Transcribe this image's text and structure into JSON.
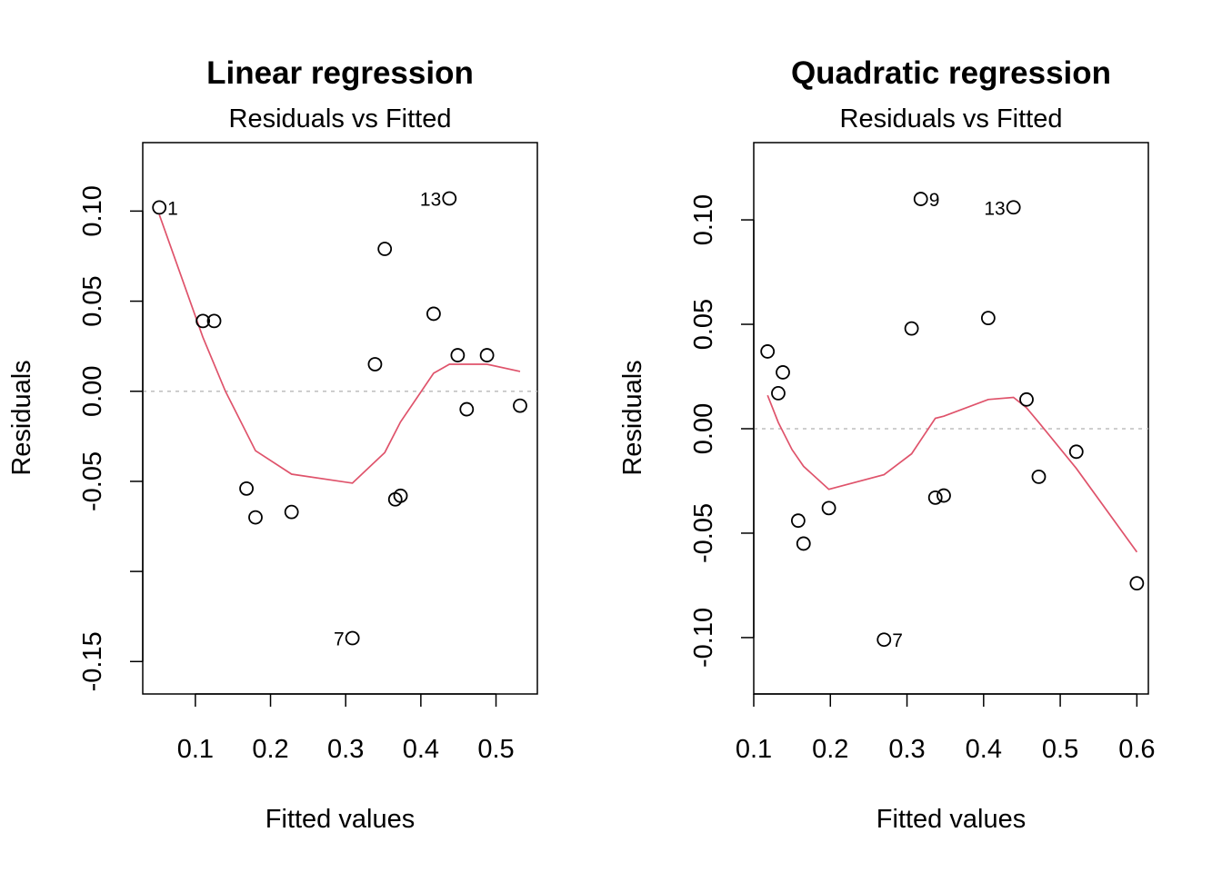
{
  "chart_data": [
    {
      "type": "scatter",
      "title": "Linear regression",
      "subtitle": "Residuals vs Fitted",
      "xlabel": "Fitted values",
      "ylabel": "Residuals",
      "xlim": [
        0.03,
        0.555
      ],
      "ylim": [
        -0.168,
        0.138
      ],
      "xticks": [
        0.1,
        0.2,
        0.3,
        0.4,
        0.5
      ],
      "xtick_labels": [
        "0.1",
        "0.2",
        "0.3",
        "0.4",
        "0.5"
      ],
      "yticks": [
        0.1,
        0.05,
        0.0,
        -0.05,
        -0.1,
        -0.15
      ],
      "ytick_labels": [
        "0.10",
        "0.05",
        "0.00",
        "-0.05",
        "",
        "-0.15"
      ],
      "reference_line_y": 0,
      "points": [
        {
          "x": 0.052,
          "y": 0.102,
          "label": "1"
        },
        {
          "x": 0.11,
          "y": 0.039
        },
        {
          "x": 0.125,
          "y": 0.039
        },
        {
          "x": 0.168,
          "y": -0.054
        },
        {
          "x": 0.18,
          "y": -0.07
        },
        {
          "x": 0.228,
          "y": -0.067
        },
        {
          "x": 0.309,
          "y": -0.137,
          "label": "7"
        },
        {
          "x": 0.339,
          "y": 0.015
        },
        {
          "x": 0.352,
          "y": 0.079
        },
        {
          "x": 0.366,
          "y": -0.06
        },
        {
          "x": 0.373,
          "y": -0.058
        },
        {
          "x": 0.417,
          "y": 0.043
        },
        {
          "x": 0.438,
          "y": 0.107,
          "label": "13"
        },
        {
          "x": 0.449,
          "y": 0.02
        },
        {
          "x": 0.461,
          "y": -0.01
        },
        {
          "x": 0.488,
          "y": 0.02
        },
        {
          "x": 0.532,
          "y": -0.008
        }
      ],
      "smooth_line": {
        "color": "#DF536B",
        "points": [
          [
            0.052,
            0.098
          ],
          [
            0.11,
            0.03
          ],
          [
            0.14,
            0.0
          ],
          [
            0.18,
            -0.033
          ],
          [
            0.228,
            -0.046
          ],
          [
            0.309,
            -0.051
          ],
          [
            0.352,
            -0.034
          ],
          [
            0.373,
            -0.017
          ],
          [
            0.417,
            0.01
          ],
          [
            0.438,
            0.015
          ],
          [
            0.461,
            0.015
          ],
          [
            0.488,
            0.015
          ],
          [
            0.532,
            0.011
          ]
        ]
      }
    },
    {
      "type": "scatter",
      "title": "Quadratic regression",
      "subtitle": "Residuals vs Fitted",
      "xlabel": "Fitted values",
      "ylabel": "Residuals",
      "xlim": [
        0.1,
        0.615
      ],
      "ylim": [
        -0.127,
        0.137
      ],
      "xticks": [
        0.1,
        0.2,
        0.3,
        0.4,
        0.5,
        0.6
      ],
      "xtick_labels": [
        "0.1",
        "0.2",
        "0.3",
        "0.4",
        "0.5",
        "0.6"
      ],
      "yticks": [
        0.1,
        0.05,
        0.0,
        -0.05,
        -0.1
      ],
      "ytick_labels": [
        "0.10",
        "0.05",
        "0.00",
        "-0.05",
        "-0.10"
      ],
      "reference_line_y": 0,
      "points": [
        {
          "x": 0.118,
          "y": 0.037
        },
        {
          "x": 0.132,
          "y": 0.017
        },
        {
          "x": 0.138,
          "y": 0.027
        },
        {
          "x": 0.158,
          "y": -0.044
        },
        {
          "x": 0.165,
          "y": -0.055
        },
        {
          "x": 0.198,
          "y": -0.038
        },
        {
          "x": 0.27,
          "y": -0.101,
          "label": "7"
        },
        {
          "x": 0.306,
          "y": 0.048
        },
        {
          "x": 0.318,
          "y": 0.11,
          "label": "9"
        },
        {
          "x": 0.337,
          "y": -0.033
        },
        {
          "x": 0.348,
          "y": -0.032
        },
        {
          "x": 0.406,
          "y": 0.053
        },
        {
          "x": 0.439,
          "y": 0.106,
          "label": "13"
        },
        {
          "x": 0.456,
          "y": 0.014
        },
        {
          "x": 0.472,
          "y": -0.023
        },
        {
          "x": 0.521,
          "y": -0.011
        },
        {
          "x": 0.6,
          "y": -0.074
        }
      ],
      "smooth_line": {
        "color": "#DF536B",
        "points": [
          [
            0.118,
            0.016
          ],
          [
            0.132,
            0.003
          ],
          [
            0.15,
            -0.01
          ],
          [
            0.165,
            -0.018
          ],
          [
            0.198,
            -0.029
          ],
          [
            0.27,
            -0.022
          ],
          [
            0.306,
            -0.012
          ],
          [
            0.337,
            0.005
          ],
          [
            0.348,
            0.006
          ],
          [
            0.406,
            0.014
          ],
          [
            0.439,
            0.015
          ],
          [
            0.456,
            0.01
          ],
          [
            0.472,
            0.003
          ],
          [
            0.521,
            -0.019
          ],
          [
            0.6,
            -0.059
          ]
        ]
      }
    }
  ]
}
